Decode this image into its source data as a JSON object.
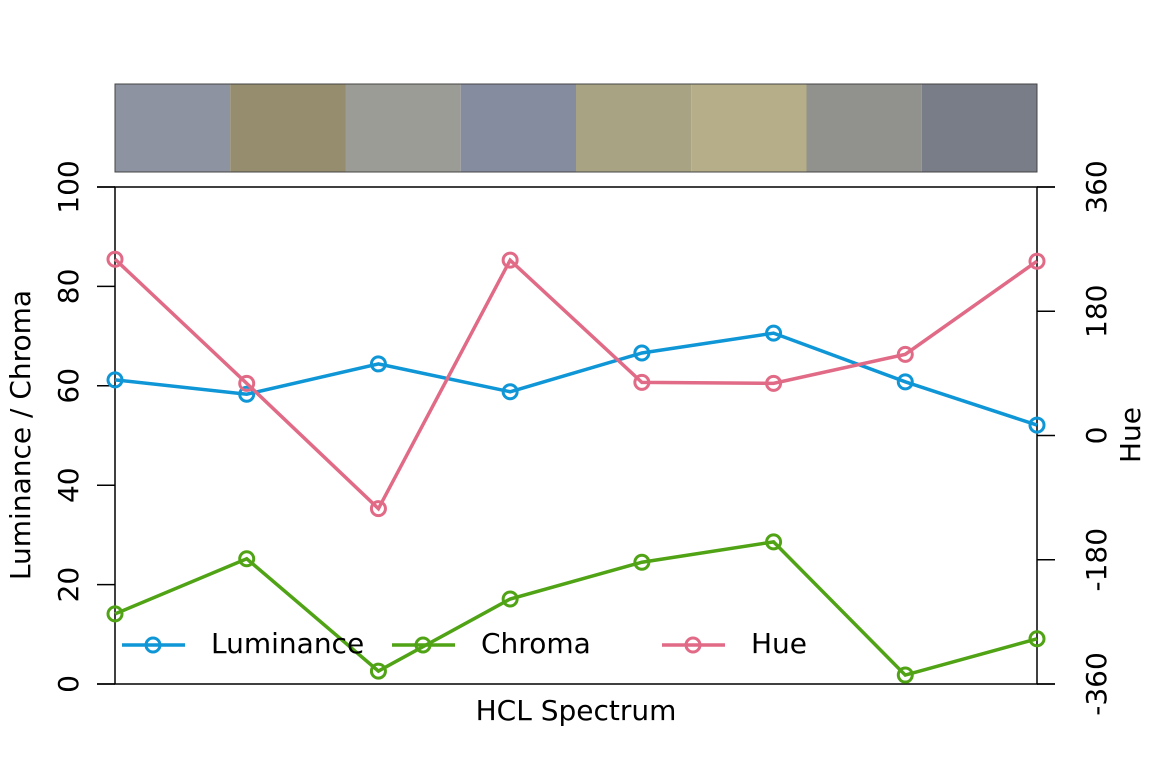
{
  "chart_data": {
    "type": "line",
    "x_label": "HCL Spectrum",
    "y_label": "Luminance / Chroma",
    "y2_label": "Hue",
    "categories": [
      null,
      null,
      null,
      null,
      null,
      null,
      null,
      null
    ],
    "swatch_colors": [
      "#8d93a1",
      "#958d6d",
      "#9b9c96",
      "#868c9f",
      "#a8a382",
      "#b5ae88",
      "#91918d",
      "#787d88"
    ],
    "series": [
      {
        "name": "Luminance",
        "color": "#0f96d6",
        "values": [
          61.2,
          58.3,
          64.4,
          58.8,
          66.6,
          70.6,
          60.8,
          52.1
        ]
      },
      {
        "name": "Chroma",
        "color": "#50a315",
        "values": [
          14.1,
          25.2,
          2.6,
          17.1,
          24.5,
          28.6,
          1.8,
          9.1
        ]
      },
      {
        "name": "Hue",
        "color": "#e16a86",
        "axis": "y2",
        "values": [
          255.4,
          75.5,
          -106,
          254,
          77,
          75.5,
          117.6,
          252.5
        ]
      }
    ],
    "ylim": [
      0,
      100
    ],
    "yticks": [
      0,
      20,
      40,
      60,
      80,
      100
    ],
    "y2lim": [
      -360,
      360
    ],
    "y2ticks": [
      -360,
      -180,
      0,
      180,
      360
    ],
    "legend": "bottom-left"
  }
}
